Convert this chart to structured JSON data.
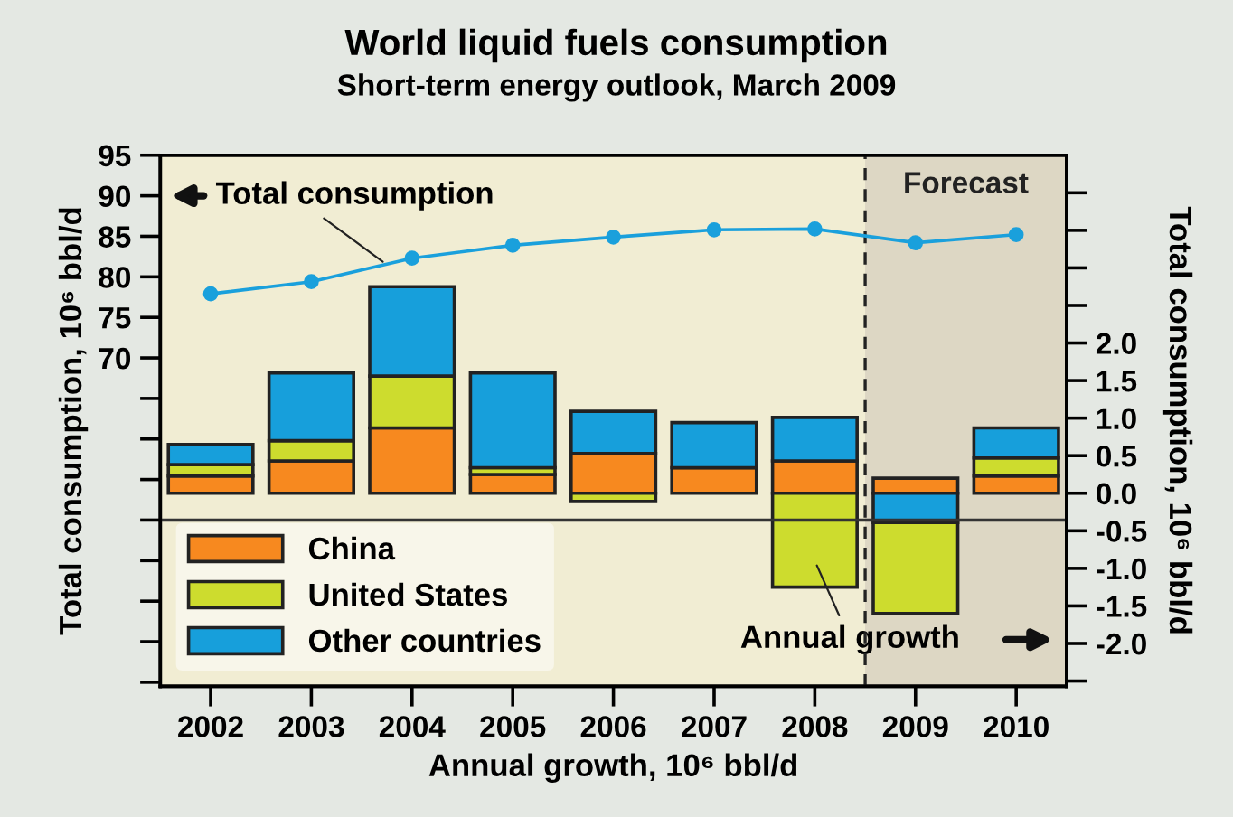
{
  "chart_data": {
    "type": "bar",
    "title": "World liquid fuels consumption",
    "subtitle": "Short-term energy outlook, March 2009",
    "xlabel": "Annual growth, 10⁶ bbl/d",
    "ylabel": "Total consumption, 10⁶ bbl/d",
    "y2label": "Total consumption, 10⁶ bbl/d",
    "x": [
      2002,
      2003,
      2004,
      2005,
      2006,
      2007,
      2008,
      2009,
      2010
    ],
    "xlim": [
      2001.5,
      2010.5
    ],
    "xticks": [
      2002,
      2003,
      2004,
      2005,
      2006,
      2007,
      2008,
      2009,
      2010
    ],
    "stacked": true,
    "series": [
      {
        "name": "China",
        "axis": "y2",
        "color": "#f7891f",
        "values": [
          0.23,
          0.43,
          0.87,
          0.25,
          0.53,
          0.34,
          0.43,
          0.2,
          0.23
        ]
      },
      {
        "name": "United States",
        "axis": "y2",
        "color": "#cddc2e",
        "values": [
          0.15,
          0.27,
          0.69,
          0.09,
          -0.11,
          0,
          -1.25,
          -1.21,
          0.24
        ]
      },
      {
        "name": "Other countries",
        "axis": "y2",
        "color": "#179fdb",
        "values": [
          0.27,
          0.9,
          1.19,
          1.26,
          0.56,
          0.6,
          0.58,
          -0.39,
          0.4
        ]
      },
      {
        "name": "Total consumption",
        "type": "line",
        "axis": "y",
        "color": "#1aa0dc",
        "marker": "circle",
        "values": [
          77.9,
          79.4,
          82.3,
          83.9,
          84.9,
          85.8,
          85.9,
          84.2,
          85.2
        ]
      }
    ],
    "ylim": [
      29.5,
      95
    ],
    "yticks": [
      {
        "value": 30,
        "label": null
      },
      {
        "value": 35,
        "label": null
      },
      {
        "value": 40,
        "label": null
      },
      {
        "value": 45,
        "label": null
      },
      {
        "value": 50,
        "label": null
      },
      {
        "value": 55,
        "label": null
      },
      {
        "value": 60,
        "label": null
      },
      {
        "value": 65,
        "label": null
      },
      70,
      75,
      80,
      85,
      90,
      95
    ],
    "y2lim": [
      -2.57,
      4.5
    ],
    "y2ticks": [
      {
        "value": -2.5,
        "label": null
      },
      {
        "value": -2,
        "label": "-2.0"
      },
      {
        "value": -1.5,
        "label": "-1.5"
      },
      {
        "value": -1,
        "label": "-1.0"
      },
      {
        "value": -0.5,
        "label": "-0.5"
      },
      {
        "value": 0,
        "label": "0.0"
      },
      {
        "value": 0.5,
        "label": "0.5"
      },
      {
        "value": 1,
        "label": "1.0"
      },
      {
        "value": 1.5,
        "label": "1.5"
      },
      {
        "value": 2,
        "label": "2.0"
      },
      {
        "value": 2.5,
        "label": null
      },
      {
        "value": 3,
        "label": null
      },
      {
        "value": 3.5,
        "label": null
      },
      {
        "value": 4,
        "label": null
      }
    ],
    "ref_lines": [
      {
        "axis": "x",
        "value": 2008.5,
        "label": null,
        "line_style": "dashed",
        "color": "#222222"
      },
      {
        "axis": "y",
        "value": 50,
        "label": null,
        "line_style": "solid",
        "color": "#333333"
      }
    ],
    "bands": [
      {
        "axis": "x",
        "from": 2008.5,
        "to": 2010.5,
        "label": "Forecast",
        "color": "#ddd7c4"
      }
    ],
    "annotations": [
      "Annual growth"
    ],
    "legend": "bottom left",
    "grid": false
  }
}
